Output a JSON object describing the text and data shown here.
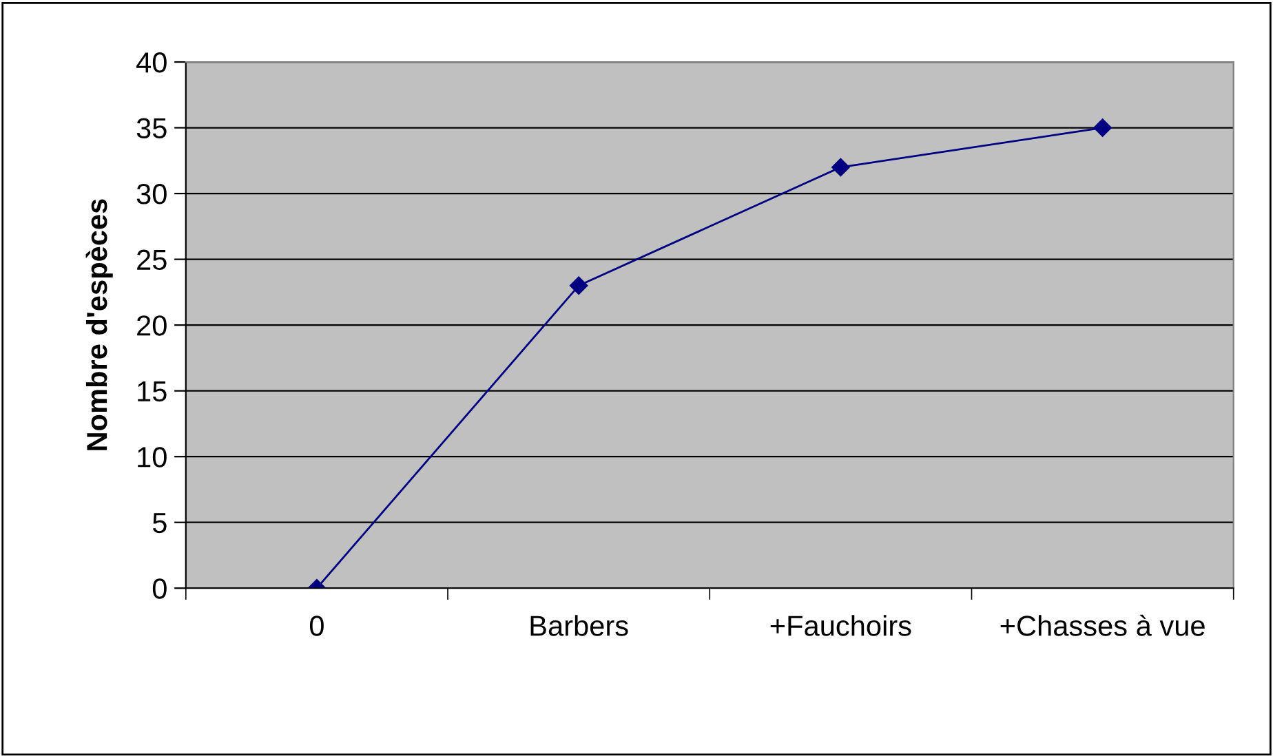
{
  "chart_data": {
    "type": "line",
    "ylabel": "Nombre d'espèces",
    "categories": [
      "0",
      "Barbers",
      "+Fauchoirs",
      "+Chasses à vue"
    ],
    "series": [
      {
        "color": "#000080",
        "values": [
          0,
          23,
          32,
          35
        ]
      }
    ],
    "ylim": [
      0,
      40
    ],
    "yticks": [
      0,
      5,
      10,
      15,
      20,
      25,
      30,
      35,
      40
    ],
    "grid": "y",
    "marker": "diamond",
    "line_style": "solid",
    "legend": false
  }
}
